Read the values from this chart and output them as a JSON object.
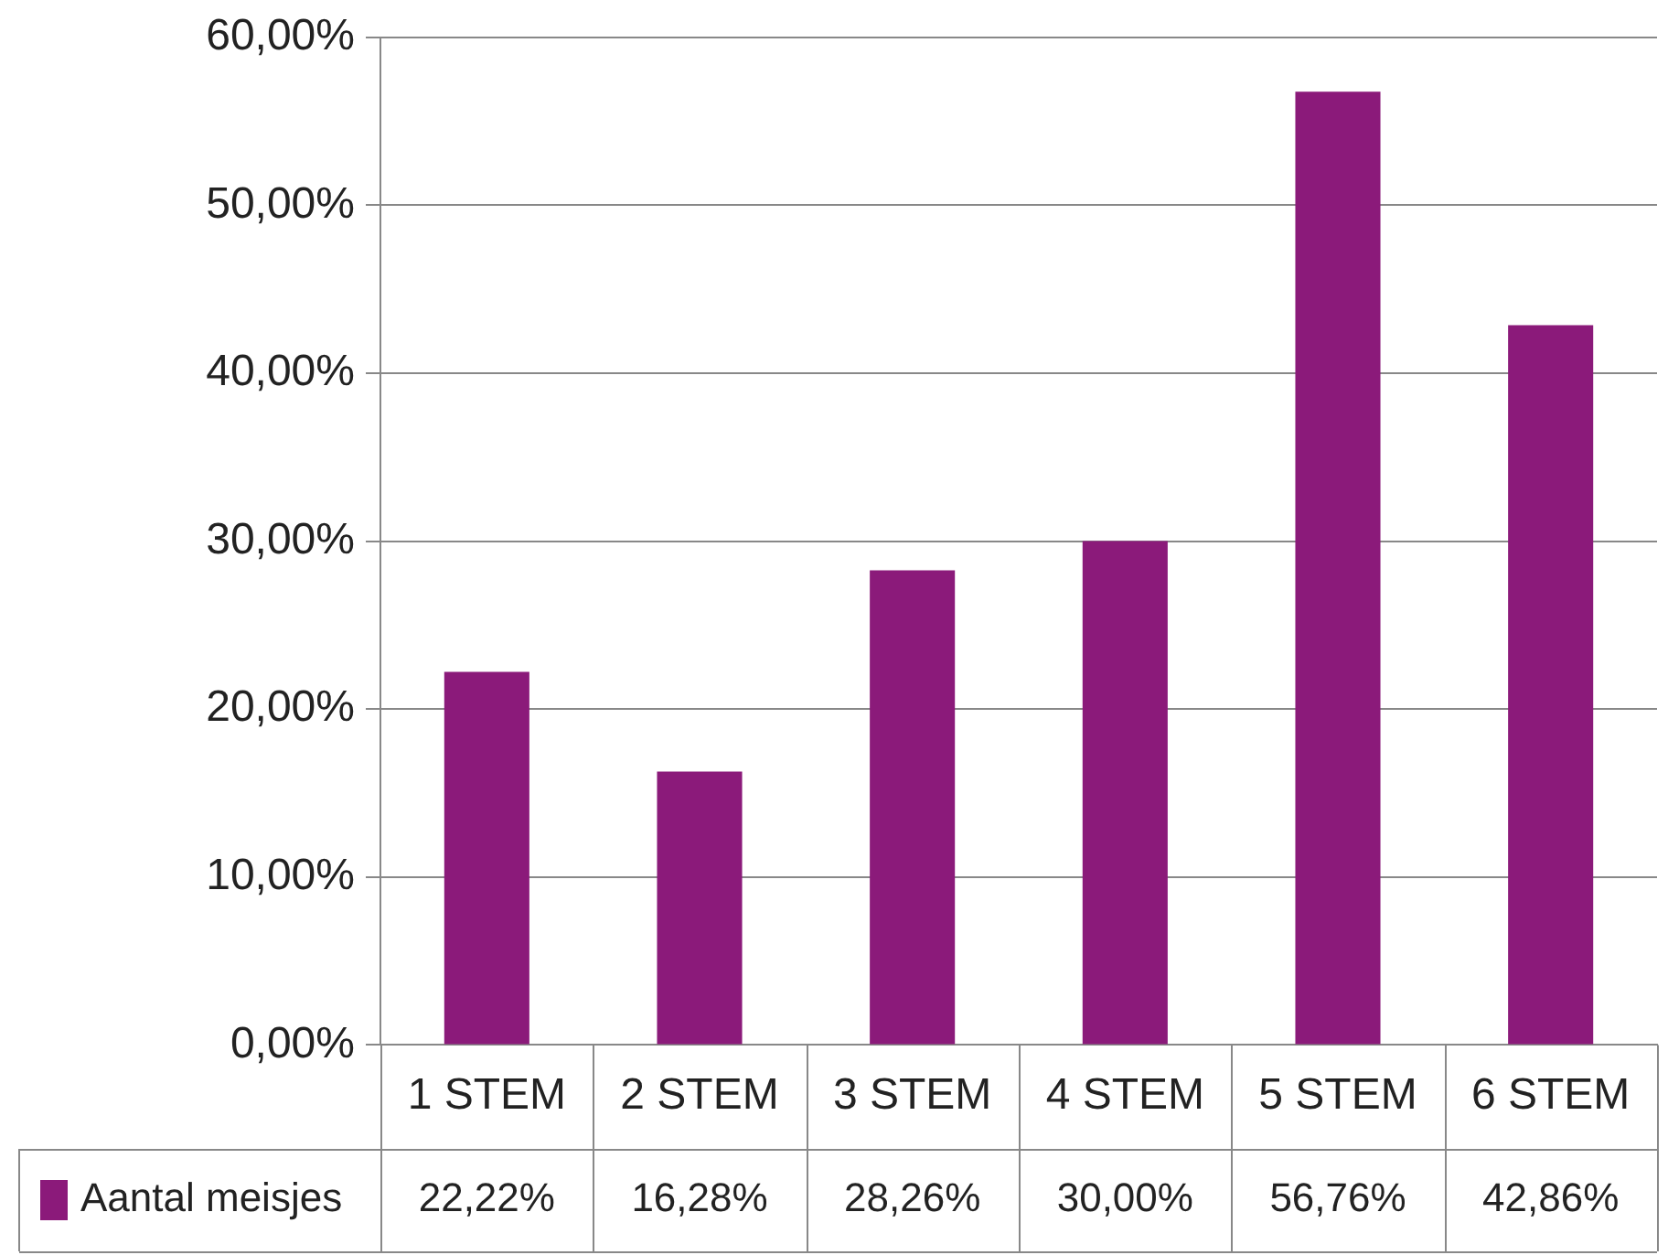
{
  "chart_data": {
    "type": "bar",
    "categories": [
      "1 STEM",
      "2 STEM",
      "3 STEM",
      "4 STEM",
      "5 STEM",
      "6 STEM"
    ],
    "series": [
      {
        "name": "Aantal meisjes",
        "color": "#8b1a7a",
        "values": [
          22.22,
          16.28,
          28.26,
          30.0,
          56.76,
          42.86
        ]
      }
    ],
    "value_labels": [
      "22,22%",
      "16,28%",
      "28,26%",
      "30,00%",
      "56,76%",
      "42,86%"
    ],
    "ylim": [
      0,
      60
    ],
    "yticks": [
      {
        "value": 0,
        "label": "0,00%"
      },
      {
        "value": 10,
        "label": "10,00%"
      },
      {
        "value": 20,
        "label": "20,00%"
      },
      {
        "value": 30,
        "label": "30,00%"
      },
      {
        "value": 40,
        "label": "40,00%"
      },
      {
        "value": 50,
        "label": "50,00%"
      },
      {
        "value": 60,
        "label": "60,00%"
      }
    ],
    "grid": "y",
    "legend": "bottom left"
  }
}
